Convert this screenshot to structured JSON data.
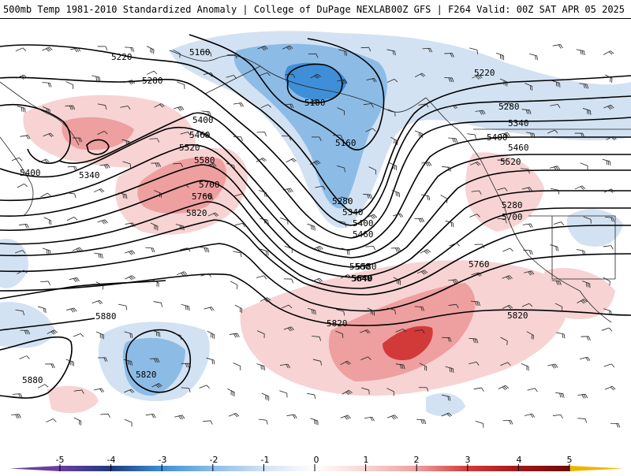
{
  "header": {
    "title": "500mb Temp 1981-2010 Standardized Anomaly | College of DuPage NEXLAB",
    "valid": "00Z GFS | F264 Valid: 00Z SAT APR 05 2025"
  },
  "colors": {
    "neg5": "#6a3fa0",
    "neg4": "#1f3a7a",
    "neg3": "#3f8fd8",
    "neg2": "#8cbce6",
    "neg1": "#d2e2f3",
    "pos1": "#f7d3d3",
    "pos2": "#ee9f9f",
    "pos3": "#d23a3a",
    "pos4": "#a01818",
    "pos5": "#6e0a0a",
    "tail_pos": "#f0b400"
  },
  "colorbar": {
    "ticks": [
      "-5",
      "-4",
      "-3",
      "-2",
      "-1",
      "0",
      "1",
      "2",
      "3",
      "4",
      "5"
    ]
  },
  "contour_labels": [
    "5160",
    "5220",
    "5280",
    "5100",
    "5160",
    "5220",
    "5280",
    "5340",
    "5400",
    "5460",
    "5520",
    "5580",
    "5640",
    "5700",
    "5760",
    "5820",
    "5880",
    "5880",
    "5820",
    "5400",
    "5340",
    "5280",
    "5400",
    "5460",
    "5520",
    "5580",
    "5700",
    "5760",
    "5820",
    "5280",
    "5340",
    "5400",
    "5460",
    "5580",
    "5640",
    "5820"
  ]
}
